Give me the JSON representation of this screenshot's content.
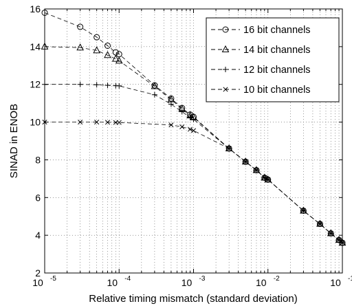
{
  "chart_data": {
    "type": "line",
    "xlabel": "Relative timing mismatch (standard deviation)",
    "ylabel": "SINAD in ENOB",
    "xscale": "log",
    "xlim": [
      1e-05,
      0.1
    ],
    "ylim": [
      2,
      16
    ],
    "x_tick_labels": [
      {
        "base": "10",
        "exp": "-5",
        "value": 1e-05
      },
      {
        "base": "10",
        "exp": "-4",
        "value": 0.0001
      },
      {
        "base": "10",
        "exp": "-3",
        "value": 0.001
      },
      {
        "base": "10",
        "exp": "-2",
        "value": 0.01
      },
      {
        "base": "10",
        "exp": "-1",
        "value": 0.1
      }
    ],
    "y_ticks": [
      2,
      4,
      6,
      8,
      10,
      12,
      14,
      16
    ],
    "grid": true,
    "legend_position": "top-right",
    "series": [
      {
        "name": "16 bit channels",
        "marker": "circle",
        "line_style": "dashed",
        "x": [
          1e-05,
          3e-05,
          5e-05,
          7e-05,
          9e-05,
          0.0001,
          0.0003,
          0.0005,
          0.0007,
          0.0009,
          0.001,
          0.003,
          0.005,
          0.007,
          0.009,
          0.01,
          0.03,
          0.05,
          0.07,
          0.09,
          0.1
        ],
        "y": [
          15.8,
          15.05,
          14.5,
          14.05,
          13.7,
          13.6,
          11.95,
          11.25,
          10.75,
          10.4,
          10.28,
          8.6,
          7.9,
          7.45,
          7.05,
          6.95,
          5.3,
          4.6,
          4.1,
          3.75,
          3.6
        ]
      },
      {
        "name": "14 bit channels",
        "marker": "triangle",
        "line_style": "dashed",
        "x": [
          1e-05,
          3e-05,
          5e-05,
          7e-05,
          9e-05,
          0.0001,
          0.0003,
          0.0005,
          0.0007,
          0.0009,
          0.001,
          0.003,
          0.005,
          0.007,
          0.009,
          0.01,
          0.03,
          0.05,
          0.07,
          0.09,
          0.1
        ],
        "y": [
          14.0,
          13.95,
          13.8,
          13.55,
          13.35,
          13.25,
          11.9,
          11.2,
          10.7,
          10.35,
          10.25,
          8.6,
          7.9,
          7.45,
          7.05,
          6.95,
          5.3,
          4.6,
          4.1,
          3.75,
          3.6
        ]
      },
      {
        "name": "12 bit channels",
        "marker": "plus",
        "line_style": "dashed",
        "x": [
          1e-05,
          3e-05,
          5e-05,
          7e-05,
          9e-05,
          0.0001,
          0.0003,
          0.0005,
          0.0007,
          0.0009,
          0.001,
          0.003,
          0.005,
          0.007,
          0.009,
          0.01,
          0.03,
          0.05,
          0.07,
          0.09,
          0.1
        ],
        "y": [
          12.0,
          12.0,
          11.98,
          11.95,
          11.93,
          11.92,
          11.45,
          10.95,
          10.55,
          10.25,
          10.15,
          8.6,
          7.9,
          7.45,
          7.05,
          6.95,
          5.3,
          4.6,
          4.1,
          3.75,
          3.6
        ]
      },
      {
        "name": "10 bit channels",
        "marker": "x",
        "line_style": "dashed",
        "x": [
          1e-05,
          3e-05,
          5e-05,
          7e-05,
          9e-05,
          0.0001,
          0.0005,
          0.0007,
          0.0009,
          0.001,
          0.003,
          0.005,
          0.007,
          0.009,
          0.01,
          0.03,
          0.05,
          0.07,
          0.09,
          0.1
        ],
        "y": [
          10.0,
          10.0,
          10.0,
          9.99,
          9.98,
          9.98,
          9.85,
          9.75,
          9.62,
          9.55,
          8.6,
          7.9,
          7.45,
          7.05,
          6.95,
          5.3,
          4.6,
          4.1,
          3.75,
          3.6
        ]
      }
    ]
  }
}
